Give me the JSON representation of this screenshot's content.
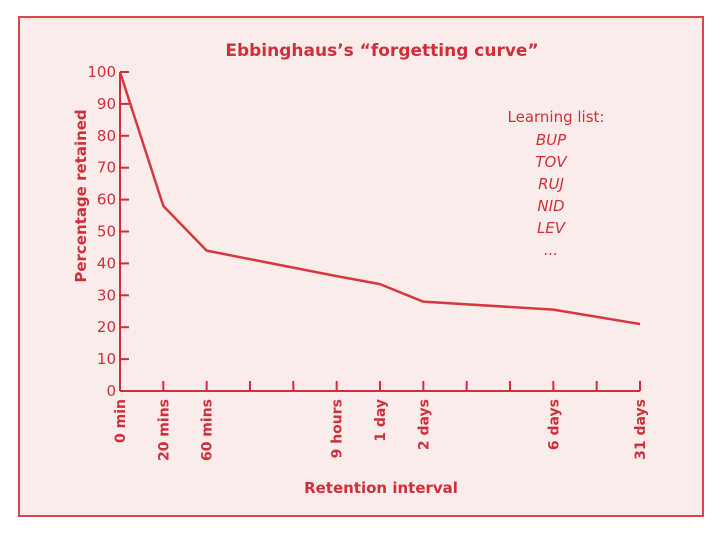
{
  "colors": {
    "frame_border": "#d9454c",
    "background": "#fbecec",
    "ink": "#cf2f39",
    "line": "#d5383f"
  },
  "chart_data": {
    "type": "line",
    "title": "Ebbinghaus’s “forgetting curve”",
    "xlabel": "Retention interval",
    "ylabel": "Percentage retained",
    "ylim": [
      0,
      100
    ],
    "yticks": [
      0,
      10,
      20,
      30,
      40,
      50,
      60,
      70,
      80,
      90,
      100
    ],
    "xtick_count": 13,
    "x_categories": [
      "0 min",
      "20 mins",
      "60 mins",
      "9 hours",
      "1 day",
      "2 days",
      "6 days",
      "31 days"
    ],
    "x_category_tick_index": [
      0,
      1,
      2,
      5,
      6,
      7,
      10,
      12
    ],
    "series": [
      {
        "values": [
          100,
          58,
          44,
          36,
          33.5,
          28,
          25.5,
          21
        ]
      }
    ],
    "legend": {
      "heading": "Learning list:",
      "items": [
        "BUP",
        "TOV",
        "RUJ",
        "NID",
        "LEV",
        "..."
      ]
    },
    "grid": false
  }
}
